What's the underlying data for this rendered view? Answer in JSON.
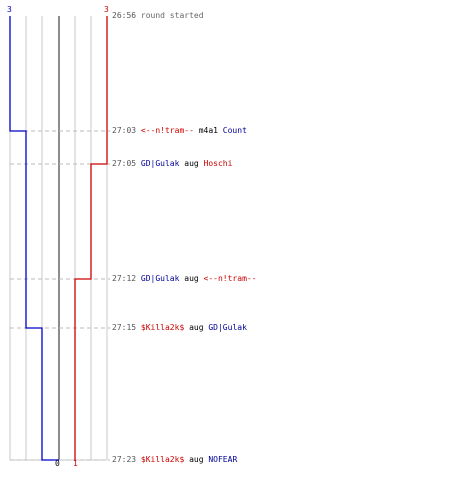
{
  "chart_data": {
    "type": "line",
    "series": [
      {
        "color": "#0000cc",
        "values": [
          3,
          2,
          2,
          2,
          1,
          0
        ]
      },
      {
        "color": "#cc0000",
        "values": [
          3,
          3,
          2,
          1,
          1,
          1
        ]
      }
    ],
    "start_label": "3",
    "end_labels": {
      "blue": "0",
      "red": "1"
    },
    "ylim": [
      0,
      3
    ],
    "grid": true
  },
  "events": [
    {
      "time": "26:56",
      "parts": [
        {
          "text": "round started",
          "color": "gray"
        }
      ]
    },
    {
      "time": "27:03",
      "parts": [
        {
          "text": "<--n!tram--",
          "color": "red"
        },
        {
          "text": " m4a1 ",
          "color": "blk"
        },
        {
          "text": "Count",
          "color": "blue"
        }
      ]
    },
    {
      "time": "27:05",
      "parts": [
        {
          "text": "GD|Gulak",
          "color": "blue"
        },
        {
          "text": " aug ",
          "color": "blk"
        },
        {
          "text": "Hoschi",
          "color": "red"
        }
      ]
    },
    {
      "time": "27:12",
      "parts": [
        {
          "text": "GD|Gulak",
          "color": "blue"
        },
        {
          "text": " aug ",
          "color": "blk"
        },
        {
          "text": "<--n!tram--",
          "color": "red"
        }
      ]
    },
    {
      "time": "27:15",
      "parts": [
        {
          "text": "$Killa2k$",
          "color": "red"
        },
        {
          "text": " aug ",
          "color": "blk"
        },
        {
          "text": "GD|Gulak",
          "color": "blue"
        }
      ]
    },
    {
      "time": "27:23",
      "parts": [
        {
          "text": "$Killa2k$",
          "color": "red"
        },
        {
          "text": " aug ",
          "color": "blk"
        },
        {
          "text": "NOFEAR",
          "color": "blue"
        }
      ]
    }
  ]
}
